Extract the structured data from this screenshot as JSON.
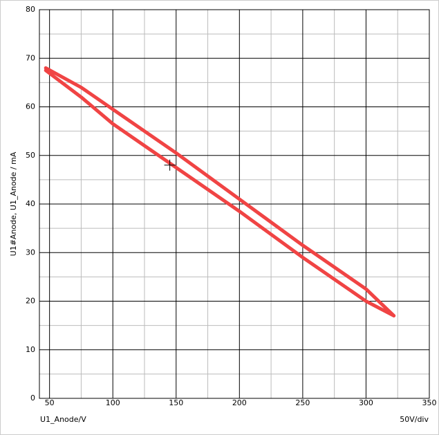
{
  "chart_data": {
    "type": "line",
    "ylabel": "U1#Anode, U1_Anode / mA",
    "xlabel": "U1_Anode/V",
    "scale_label": "50V/div",
    "xlim": [
      42,
      350
    ],
    "ylim": [
      0,
      80
    ],
    "xticks": [
      50,
      100,
      150,
      200,
      250,
      300,
      350
    ],
    "yticks": [
      0,
      10,
      20,
      30,
      40,
      50,
      60,
      70,
      80
    ],
    "x_minor_ticks": [
      75,
      125,
      175,
      225,
      275,
      325
    ],
    "y_minor_ticks": [
      5,
      15,
      25,
      35,
      45,
      55,
      65,
      75
    ],
    "grid": true,
    "series": [
      {
        "color": "#f04444",
        "x": [
          47,
          75,
          100,
          150,
          200,
          250,
          300,
          322,
          300,
          250,
          200,
          150,
          100,
          75,
          47
        ],
        "values": [
          68,
          64,
          59.5,
          50.5,
          41,
          31.5,
          22.5,
          17,
          20,
          29,
          38.5,
          47.5,
          56.5,
          62,
          67.5
        ]
      }
    ],
    "cursor": {
      "x": 145,
      "y": 48
    }
  }
}
